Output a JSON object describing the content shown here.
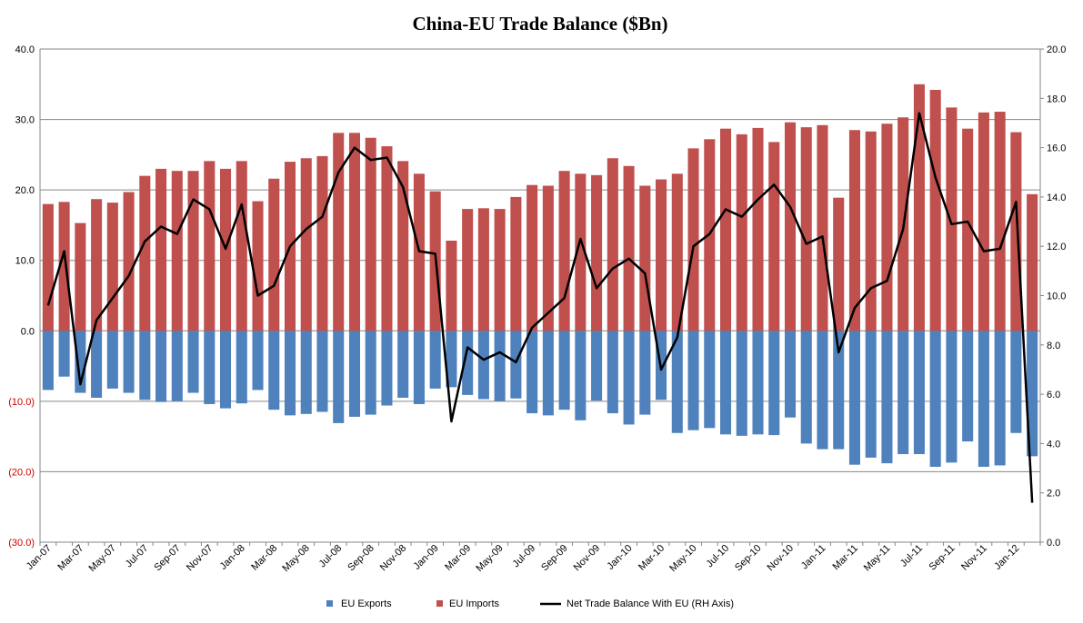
{
  "chart_data": {
    "type": "bar",
    "title": "China-EU Trade Balance ($Bn)",
    "x": [
      "Jan-07",
      "Feb-07",
      "Mar-07",
      "Apr-07",
      "May-07",
      "Jun-07",
      "Jul-07",
      "Aug-07",
      "Sep-07",
      "Oct-07",
      "Nov-07",
      "Dec-07",
      "Jan-08",
      "Feb-08",
      "Mar-08",
      "Apr-08",
      "May-08",
      "Jun-08",
      "Jul-08",
      "Aug-08",
      "Sep-08",
      "Oct-08",
      "Nov-08",
      "Dec-08",
      "Jan-09",
      "Feb-09",
      "Mar-09",
      "Apr-09",
      "May-09",
      "Jun-09",
      "Jul-09",
      "Aug-09",
      "Sep-09",
      "Oct-09",
      "Nov-09",
      "Dec-09",
      "Jan-10",
      "Feb-10",
      "Mar-10",
      "Apr-10",
      "May-10",
      "Jun-10",
      "Jul-10",
      "Aug-10",
      "Sep-10",
      "Oct-10",
      "Nov-10",
      "Dec-10",
      "Jan-11",
      "Feb-11",
      "Mar-11",
      "Apr-11",
      "May-11",
      "Jun-11",
      "Jul-11",
      "Aug-11",
      "Sep-11",
      "Oct-11",
      "Nov-11",
      "Dec-11",
      "Jan-12",
      "Feb-12"
    ],
    "x_tick_labels": [
      "Jan-07",
      "Mar-07",
      "May-07",
      "Jul-07",
      "Sep-07",
      "Nov-07",
      "Jan-08",
      "Mar-08",
      "May-08",
      "Jul-08",
      "Sep-08",
      "Nov-08",
      "Jan-09",
      "Mar-09",
      "May-09",
      "Jul-09",
      "Sep-09",
      "Nov-09",
      "Jan-10",
      "Mar-10",
      "May-10",
      "Jul-10",
      "Sep-10",
      "Nov-10",
      "Jan-11",
      "Mar-11",
      "May-11",
      "Jul-11",
      "Sep-11",
      "Nov-11",
      "Jan-12"
    ],
    "y_left": {
      "range": [
        -30,
        40
      ],
      "tick_labels": [
        "40.0",
        "30.0",
        "20.0",
        "10.0",
        "0.0",
        "(10.0)",
        "(20.0)",
        "(30.0)"
      ],
      "tick_values": [
        40,
        30,
        20,
        10,
        0,
        -10,
        -20,
        -30
      ]
    },
    "y_right": {
      "range": [
        0,
        20
      ],
      "tick_labels": [
        "20.0",
        "18.0",
        "16.0",
        "14.0",
        "12.0",
        "10.0",
        "8.0",
        "6.0",
        "4.0",
        "2.0",
        "0.0"
      ],
      "tick_values": [
        20,
        18,
        16,
        14,
        12,
        10,
        8,
        6,
        4,
        2,
        0
      ]
    },
    "grid": true,
    "legend_position": "bottom",
    "series": [
      {
        "name": "EU Exports",
        "type": "bar",
        "axis": "left",
        "color": "#4f81bd",
        "values": [
          -8.4,
          -6.5,
          -8.8,
          -9.5,
          -8.2,
          -8.8,
          -9.8,
          -10.1,
          -10.0,
          -8.8,
          -10.4,
          -11.0,
          -10.3,
          -8.4,
          -11.2,
          -12.0,
          -11.8,
          -11.5,
          -13.1,
          -12.2,
          -11.9,
          -10.6,
          -9.5,
          -10.4,
          -8.2,
          -8.0,
          -9.1,
          -9.7,
          -10.0,
          -9.6,
          -11.7,
          -12.0,
          -11.2,
          -12.7,
          -9.9,
          -11.7,
          -13.3,
          -11.9,
          -9.8,
          -14.5,
          -14.1,
          -13.8,
          -14.7,
          -14.9,
          -14.7,
          -14.8,
          -12.3,
          -16.0,
          -16.8,
          -16.8,
          -19.0,
          -18.0,
          -18.8,
          -17.5,
          -17.5,
          -19.3,
          -18.7,
          -15.7,
          -19.3,
          -19.1,
          -14.5,
          -17.8
        ]
      },
      {
        "name": "EU Imports",
        "type": "bar",
        "axis": "left",
        "color": "#c0504d",
        "values": [
          18.0,
          18.3,
          15.3,
          18.7,
          18.2,
          19.7,
          22.0,
          23.0,
          22.7,
          22.7,
          24.1,
          23.0,
          24.1,
          18.4,
          21.6,
          24.0,
          24.5,
          24.8,
          28.1,
          28.1,
          27.4,
          26.2,
          24.1,
          22.3,
          19.8,
          12.8,
          17.3,
          17.4,
          17.3,
          19.0,
          20.7,
          20.6,
          22.7,
          22.3,
          22.1,
          24.5,
          23.4,
          20.6,
          21.5,
          22.3,
          25.9,
          27.2,
          28.7,
          27.9,
          28.8,
          26.8,
          29.6,
          28.9,
          29.2,
          18.9,
          28.5,
          28.3,
          29.4,
          30.3,
          35.0,
          34.2,
          31.7,
          28.7,
          31.0,
          31.1,
          28.2,
          19.4
        ]
      },
      {
        "name": "Net Trade Balance With EU (RH Axis)",
        "type": "line",
        "axis": "right",
        "color": "#000000",
        "values": [
          9.6,
          11.8,
          6.4,
          9.0,
          9.9,
          10.8,
          12.2,
          12.8,
          12.5,
          13.9,
          13.5,
          11.9,
          13.7,
          10.0,
          10.4,
          12.0,
          12.7,
          13.2,
          15.0,
          16.0,
          15.5,
          15.6,
          14.4,
          11.8,
          11.7,
          4.9,
          7.9,
          7.4,
          7.7,
          7.3,
          8.7,
          9.3,
          9.9,
          12.3,
          10.3,
          11.1,
          11.5,
          10.9,
          7.0,
          8.3,
          12.0,
          12.5,
          13.5,
          13.2,
          13.9,
          14.5,
          13.6,
          12.1,
          12.4,
          7.7,
          9.5,
          10.3,
          10.6,
          12.7,
          17.4,
          14.8,
          12.9,
          13.0,
          11.8,
          11.9,
          13.8,
          1.6
        ]
      }
    ]
  }
}
